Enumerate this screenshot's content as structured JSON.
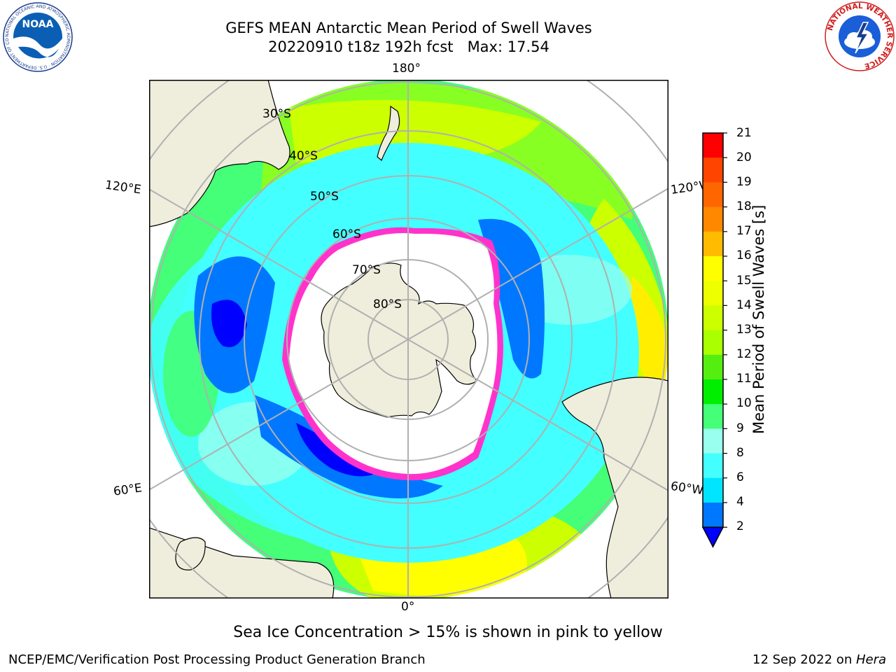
{
  "header": {
    "title": "GEFS MEAN Antarctic Mean Period of Swell Waves",
    "subtitle": "20220910 t18z 192h fcst   Max: 17.54"
  },
  "logos": {
    "left_text": "NOAA",
    "left_ring_text": "NATIONAL OCEANIC AND ATMOSPHERIC ADMINISTRATION · U.S. DEPARTMENT OF COMMERCE",
    "right_ring_text": "NATIONAL WEATHER SERVICE"
  },
  "map": {
    "projection": "south-polar-stereographic",
    "lon_labels": {
      "top": "180°",
      "bottom": "0°",
      "left_upper": "120°E",
      "left_lower": "60°E",
      "right_upper": "120°W",
      "right_lower": "60°W"
    },
    "lat_labels": [
      "30°S",
      "40°S",
      "50°S",
      "60°S",
      "70°S",
      "80°S"
    ],
    "colors": {
      "land": "#efeedc",
      "ice_edge": "#ff33cc",
      "ice_interior": "#ffffff",
      "grid": "#b0b0b0"
    }
  },
  "colorbar": {
    "label": "Mean Period of Swell Waves [s]",
    "ticks": [
      "21",
      "20",
      "19",
      "18",
      "17",
      "16",
      "15",
      "14",
      "13",
      "12",
      "11",
      "10",
      "9",
      "8",
      "6",
      "4",
      "2"
    ],
    "bins": [
      {
        "from": 2,
        "to": 4,
        "color": "#0077ff"
      },
      {
        "from": 4,
        "to": 6,
        "color": "#00e5ff"
      },
      {
        "from": 6,
        "to": 8,
        "color": "#44ffff"
      },
      {
        "from": 8,
        "to": 9,
        "color": "#99ffee"
      },
      {
        "from": 9,
        "to": 10,
        "color": "#44ff77"
      },
      {
        "from": 10,
        "to": 11,
        "color": "#00ee00"
      },
      {
        "from": 11,
        "to": 12,
        "color": "#55ee11"
      },
      {
        "from": 12,
        "to": 13,
        "color": "#aaff00"
      },
      {
        "from": 13,
        "to": 14,
        "color": "#ccff00"
      },
      {
        "from": 14,
        "to": 15,
        "color": "#eeff00"
      },
      {
        "from": 15,
        "to": 16,
        "color": "#ffff00"
      },
      {
        "from": 16,
        "to": 17,
        "color": "#ffbb00"
      },
      {
        "from": 17,
        "to": 18,
        "color": "#ff8800"
      },
      {
        "from": 18,
        "to": 19,
        "color": "#ff6600"
      },
      {
        "from": 19,
        "to": 20,
        "color": "#ff4400"
      },
      {
        "from": 20,
        "to": 21,
        "color": "#ff0000"
      }
    ],
    "extend_color": "#0000ff"
  },
  "note": "Sea Ice Concentration > 15% is shown in pink to yellow",
  "footer": {
    "left": "NCEP/EMC/Verification Post Processing Product Generation Branch",
    "right_prefix": "12 Sep 2022 on ",
    "right_host": "Hera"
  }
}
